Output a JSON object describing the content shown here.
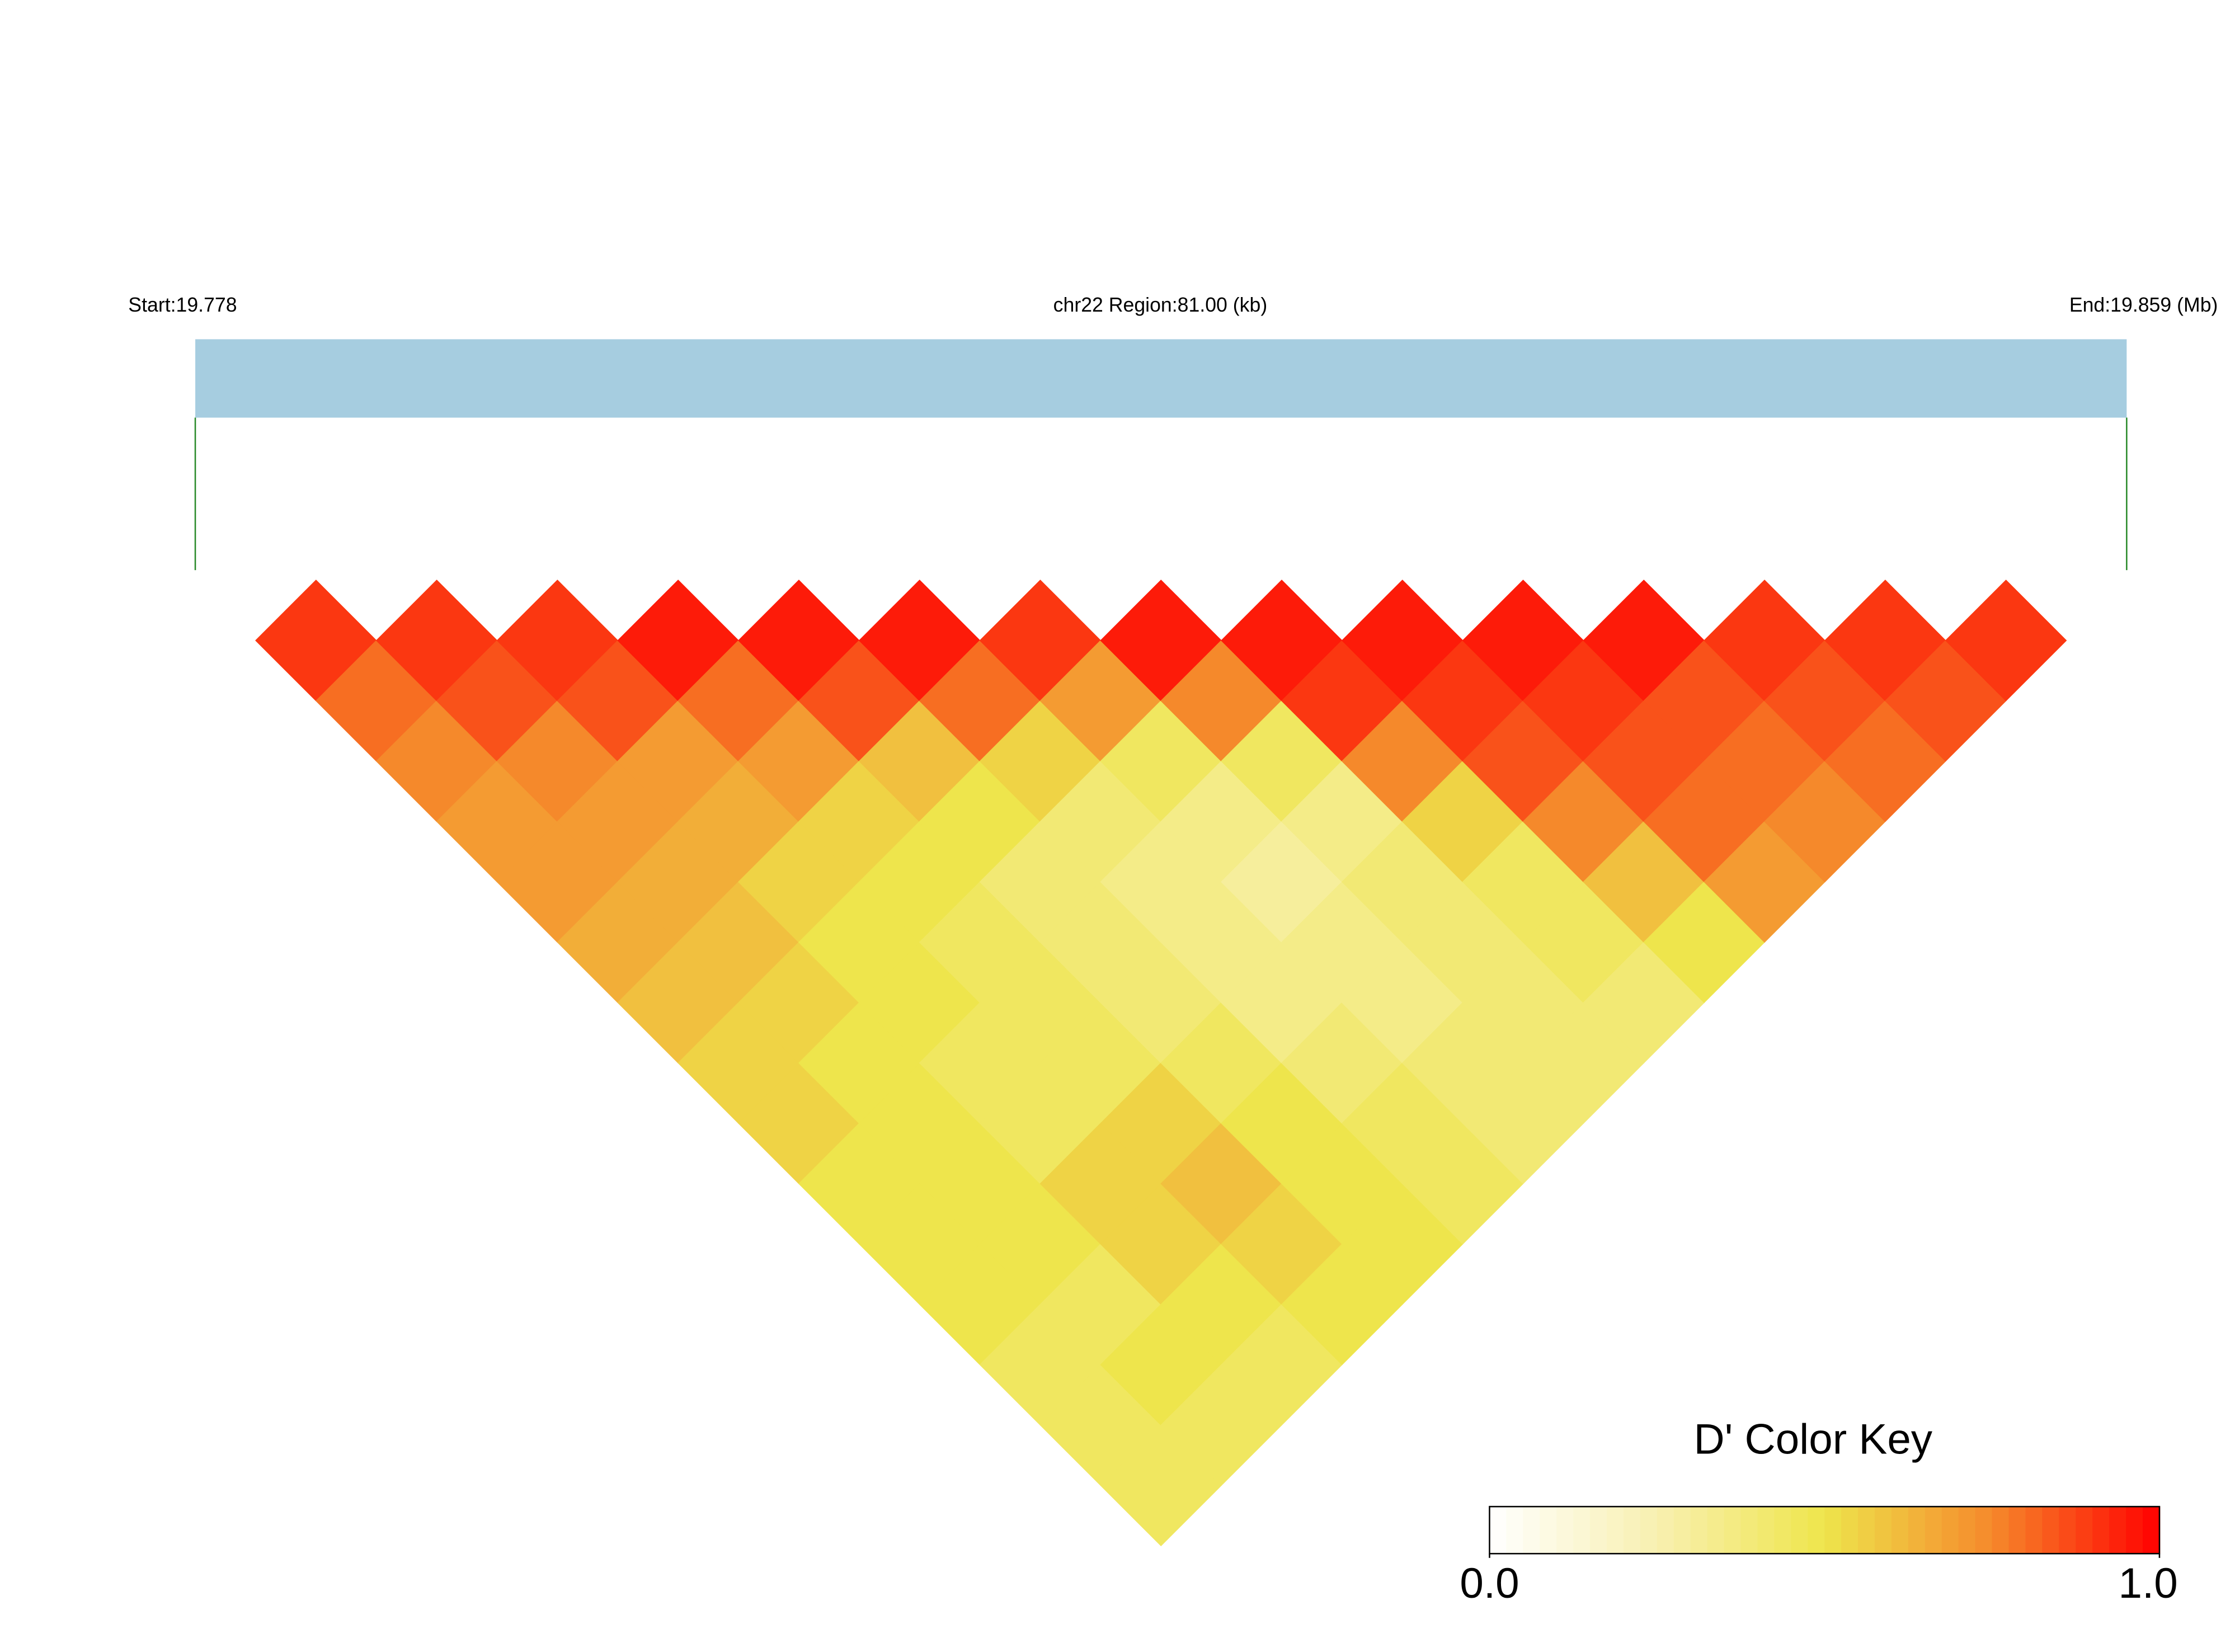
{
  "chart_data": {
    "type": "ld_heatmap",
    "start_label": "Start:19.778",
    "region_label": "chr22 Region:81.00 (kb)",
    "end_label": "End:19.859 (Mb)",
    "key_title": "D' Color Key",
    "colorscale": [
      "#ffffff",
      "#f8f0b0",
      "#eee54c",
      "#f5892b",
      "#ff0000"
    ],
    "key_lim": [
      0,
      1
    ],
    "key_ticks": [
      {
        "value": 0,
        "label": "0.0"
      },
      {
        "value": 1,
        "label": "1.0"
      }
    ],
    "dprime": [
      [
        0.9,
        0.8,
        0.75,
        0.7,
        0.7,
        0.65,
        0.6,
        0.55,
        0.55,
        0.5,
        0.5,
        0.5,
        0.45,
        0.45,
        0.45
      ],
      [
        0.9,
        0.85,
        0.75,
        0.7,
        0.65,
        0.6,
        0.55,
        0.5,
        0.5,
        0.5,
        0.5,
        0.45,
        0.5,
        0.45
      ],
      [
        0.9,
        0.85,
        0.7,
        0.65,
        0.55,
        0.5,
        0.5,
        0.45,
        0.45,
        0.55,
        0.55,
        0.5,
        0.45
      ],
      [
        0.95,
        0.8,
        0.7,
        0.55,
        0.5,
        0.45,
        0.45,
        0.45,
        0.55,
        0.6,
        0.55,
        0.5
      ],
      [
        0.95,
        0.85,
        0.6,
        0.5,
        0.4,
        0.4,
        0.4,
        0.45,
        0.5,
        0.5,
        0.5
      ],
      [
        0.95,
        0.8,
        0.55,
        0.4,
        0.35,
        0.35,
        0.35,
        0.4,
        0.45,
        0.45
      ],
      [
        0.9,
        0.7,
        0.45,
        0.35,
        0.3,
        0.35,
        0.35,
        0.4,
        0.4
      ],
      [
        0.95,
        0.75,
        0.45,
        0.35,
        0.4,
        0.4,
        0.4,
        0.4
      ],
      [
        0.95,
        0.9,
        0.75,
        0.55,
        0.45,
        0.45,
        0.4
      ],
      [
        0.95,
        0.9,
        0.85,
        0.75,
        0.6,
        0.5
      ],
      [
        0.95,
        0.9,
        0.85,
        0.8,
        0.7
      ],
      [
        0.95,
        0.85,
        0.8,
        0.75
      ],
      [
        0.9,
        0.85,
        0.8
      ],
      [
        0.9,
        0.85
      ],
      [
        0.9
      ]
    ]
  }
}
